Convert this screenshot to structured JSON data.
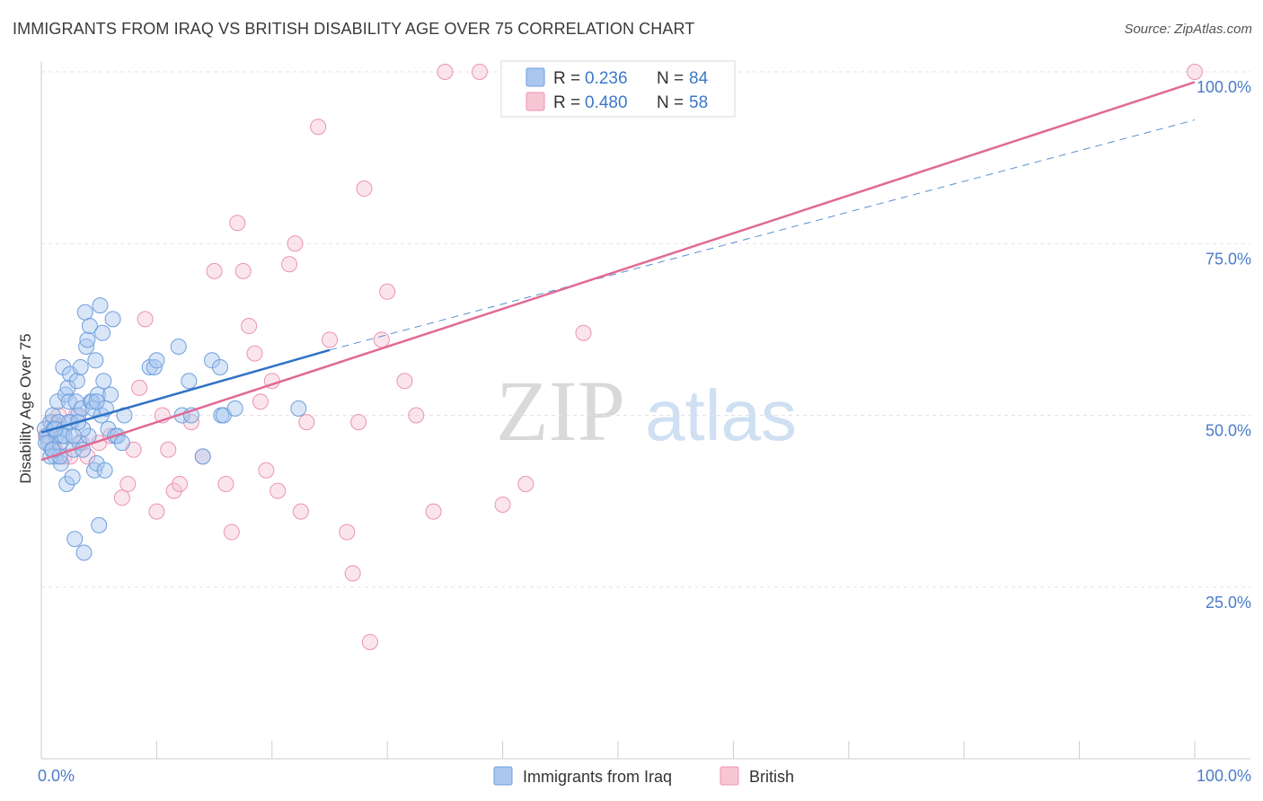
{
  "header": {
    "title": "IMMIGRANTS FROM IRAQ VS BRITISH DISABILITY AGE OVER 75 CORRELATION CHART",
    "source": "Source: ZipAtlas.com"
  },
  "watermark": {
    "zip": "ZIP",
    "atlas": "atlas"
  },
  "legend_top": {
    "rows": [
      {
        "r_label": "R =",
        "r_value": "0.236",
        "n_label": "N =",
        "n_value": "84"
      },
      {
        "r_label": "R =",
        "r_value": "0.480",
        "n_label": "N =",
        "n_value": "58"
      }
    ]
  },
  "legend_bottom": {
    "items": [
      "Immigrants from Iraq",
      "British"
    ]
  },
  "colors": {
    "blue_fill": "#a9c7ef",
    "blue_stroke": "#6f9fdc",
    "blue_line": "#2f72c6",
    "pink_fill": "#f7c6d5",
    "pink_stroke": "#ec93b0",
    "pink_line": "#e06a95",
    "grid": "#e3e3e3",
    "tick_label": "#4a7cc9"
  },
  "chart_data": {
    "type": "scatter",
    "title": "IMMIGRANTS FROM IRAQ VS BRITISH DISABILITY AGE OVER 75 CORRELATION CHART",
    "xlabel": "",
    "ylabel": "Disability Age Over 75",
    "xlim": [
      0,
      100
    ],
    "ylim": [
      0,
      100
    ],
    "x_tick_labels": [
      "0.0%",
      "100.0%"
    ],
    "y_tick_labels": [
      "25.0%",
      "50.0%",
      "75.0%",
      "100.0%"
    ],
    "y_ticks": [
      25,
      50,
      75,
      100
    ],
    "grid": true,
    "legend_position": "top-center",
    "series": [
      {
        "name": "Immigrants from Iraq",
        "color": "#6f9fdc",
        "r": 0.236,
        "n": 84,
        "trend": {
          "x": [
            0,
            25
          ],
          "y": [
            47.5,
            59.5
          ]
        },
        "trend_extension": {
          "x": [
            25,
            100
          ],
          "y": [
            59.5,
            93.0
          ]
        },
        "points": [
          [
            0.3,
            48
          ],
          [
            0.5,
            47
          ],
          [
            0.6,
            46
          ],
          [
            0.8,
            49
          ],
          [
            0.9,
            45
          ],
          [
            1.0,
            50
          ],
          [
            1.1,
            48
          ],
          [
            1.2,
            44
          ],
          [
            1.3,
            47
          ],
          [
            1.4,
            52
          ],
          [
            1.5,
            49
          ],
          [
            1.6,
            46
          ],
          [
            1.7,
            43
          ],
          [
            1.8,
            47
          ],
          [
            1.9,
            57
          ],
          [
            2.0,
            48
          ],
          [
            2.1,
            53
          ],
          [
            2.2,
            40
          ],
          [
            2.3,
            54
          ],
          [
            2.4,
            52
          ],
          [
            2.5,
            56
          ],
          [
            2.6,
            49
          ],
          [
            2.7,
            41
          ],
          [
            2.8,
            45
          ],
          [
            2.9,
            32
          ],
          [
            3.0,
            52
          ],
          [
            3.1,
            55
          ],
          [
            3.2,
            50
          ],
          [
            3.3,
            46
          ],
          [
            3.4,
            57
          ],
          [
            3.5,
            51
          ],
          [
            3.6,
            45
          ],
          [
            3.7,
            30
          ],
          [
            3.8,
            65
          ],
          [
            3.9,
            60
          ],
          [
            4.0,
            61
          ],
          [
            4.1,
            47
          ],
          [
            4.2,
            63
          ],
          [
            4.3,
            52
          ],
          [
            4.4,
            52
          ],
          [
            4.5,
            51
          ],
          [
            4.6,
            42
          ],
          [
            4.7,
            58
          ],
          [
            4.8,
            43
          ],
          [
            4.9,
            53
          ],
          [
            5.0,
            34
          ],
          [
            5.1,
            66
          ],
          [
            5.2,
            50
          ],
          [
            5.3,
            62
          ],
          [
            5.4,
            55
          ],
          [
            5.5,
            42
          ],
          [
            5.6,
            51
          ],
          [
            5.8,
            48
          ],
          [
            6.0,
            53
          ],
          [
            6.2,
            64
          ],
          [
            6.4,
            47
          ],
          [
            6.6,
            47
          ],
          [
            7.0,
            46
          ],
          [
            7.2,
            50
          ],
          [
            2.0,
            47
          ],
          [
            1.2,
            48
          ],
          [
            0.8,
            44
          ],
          [
            1.6,
            44
          ],
          [
            2.4,
            49
          ],
          [
            3.6,
            48
          ],
          [
            4.8,
            52
          ],
          [
            9.4,
            57
          ],
          [
            9.8,
            57
          ],
          [
            10.0,
            58
          ],
          [
            11.9,
            60
          ],
          [
            12.2,
            50
          ],
          [
            12.8,
            55
          ],
          [
            13.0,
            50
          ],
          [
            14.0,
            44
          ],
          [
            14.8,
            58
          ],
          [
            15.5,
            57
          ],
          [
            15.6,
            50
          ],
          [
            15.8,
            50
          ],
          [
            16.8,
            51
          ],
          [
            22.3,
            51
          ],
          [
            0.4,
            46
          ],
          [
            1.0,
            45
          ],
          [
            2.8,
            47
          ],
          [
            3.2,
            49
          ]
        ]
      },
      {
        "name": "British",
        "color": "#ec93b0",
        "r": 0.48,
        "n": 58,
        "trend": {
          "x": [
            0,
            100
          ],
          "y": [
            43.5,
            98.5
          ]
        },
        "points": [
          [
            0.4,
            47
          ],
          [
            0.8,
            46
          ],
          [
            1.0,
            49
          ],
          [
            1.2,
            45
          ],
          [
            1.5,
            50
          ],
          [
            2.0,
            44
          ],
          [
            2.5,
            44
          ],
          [
            3.0,
            50
          ],
          [
            3.5,
            46
          ],
          [
            4.0,
            44
          ],
          [
            5.0,
            46
          ],
          [
            6.0,
            47
          ],
          [
            7.0,
            38
          ],
          [
            7.5,
            40
          ],
          [
            8.0,
            45
          ],
          [
            8.5,
            54
          ],
          [
            9.0,
            64
          ],
          [
            10.0,
            36
          ],
          [
            10.5,
            50
          ],
          [
            11.0,
            45
          ],
          [
            11.5,
            39
          ],
          [
            12.0,
            40
          ],
          [
            13.0,
            49
          ],
          [
            14.0,
            44
          ],
          [
            15.0,
            71
          ],
          [
            16.0,
            40
          ],
          [
            16.5,
            33
          ],
          [
            17.0,
            78
          ],
          [
            17.5,
            71
          ],
          [
            18.0,
            63
          ],
          [
            18.5,
            59
          ],
          [
            19.0,
            52
          ],
          [
            19.5,
            42
          ],
          [
            20.0,
            55
          ],
          [
            20.5,
            39
          ],
          [
            21.5,
            72
          ],
          [
            22.0,
            75
          ],
          [
            22.5,
            36
          ],
          [
            23.0,
            49
          ],
          [
            24.0,
            92
          ],
          [
            25.0,
            61
          ],
          [
            26.5,
            33
          ],
          [
            27.0,
            27
          ],
          [
            27.5,
            49
          ],
          [
            28.0,
            83
          ],
          [
            28.5,
            17
          ],
          [
            29.5,
            61
          ],
          [
            30.0,
            68
          ],
          [
            31.5,
            55
          ],
          [
            32.5,
            50
          ],
          [
            34.0,
            36
          ],
          [
            35.0,
            100
          ],
          [
            38.0,
            100
          ],
          [
            40.0,
            37
          ],
          [
            42.0,
            40
          ],
          [
            47.0,
            62
          ],
          [
            52.0,
            100
          ],
          [
            100.0,
            100
          ]
        ]
      }
    ]
  }
}
